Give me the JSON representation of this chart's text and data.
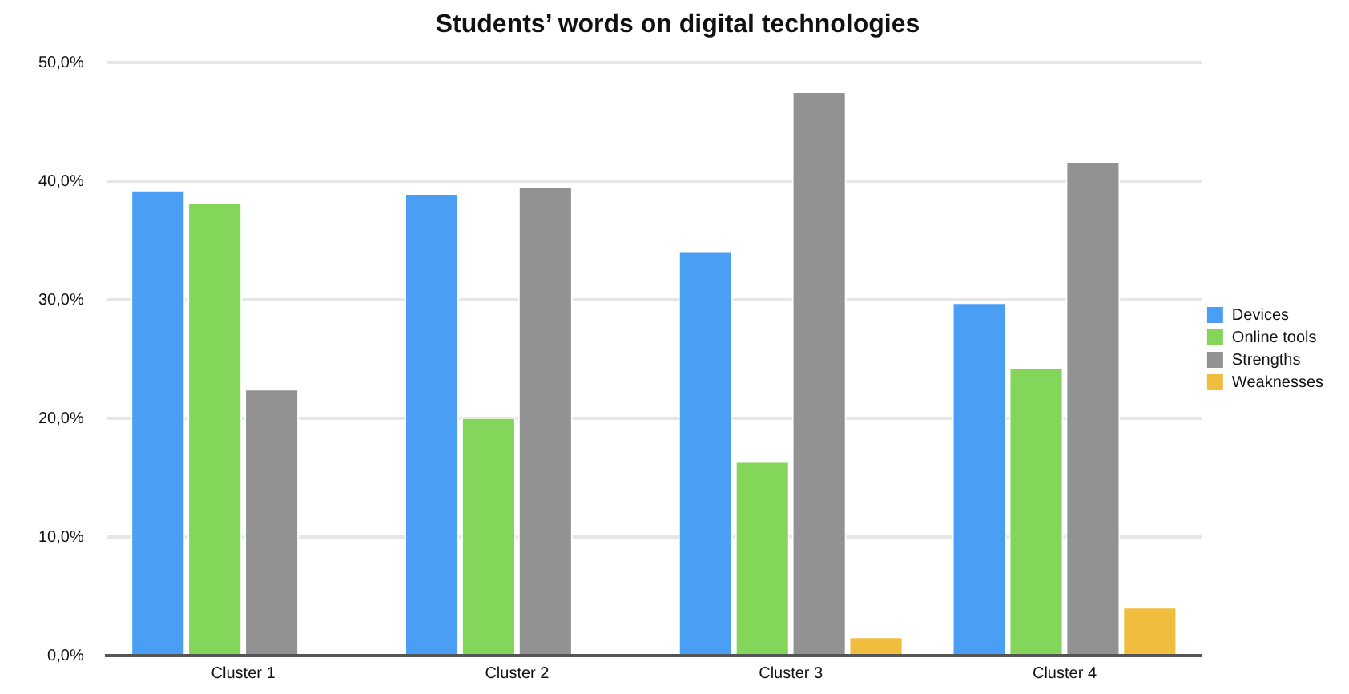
{
  "chart_data": {
    "type": "bar",
    "title": "Students’ words on digital technologies",
    "categories": [
      "Cluster 1",
      "Cluster 2",
      "Cluster 3",
      "Cluster 4"
    ],
    "series": [
      {
        "name": "Devices",
        "color": "#4a9ff5",
        "values": [
          39.3,
          39.0,
          34.1,
          29.8
        ]
      },
      {
        "name": "Online tools",
        "color": "#84d65a",
        "values": [
          38.2,
          20.1,
          16.4,
          24.3
        ]
      },
      {
        "name": "Strengths",
        "color": "#929292",
        "values": [
          22.5,
          39.6,
          47.6,
          41.7
        ]
      },
      {
        "name": "Weaknesses",
        "color": "#f0bd3e",
        "values": [
          null,
          null,
          1.6,
          4.1
        ]
      }
    ],
    "ylim": [
      0,
      50
    ],
    "yticks": [
      {
        "value": 0,
        "label": "0,0%"
      },
      {
        "value": 10,
        "label": "10,0%"
      },
      {
        "value": 20,
        "label": "20,0%"
      },
      {
        "value": 30,
        "label": "30,0%"
      },
      {
        "value": 40,
        "label": "40,0%"
      },
      {
        "value": 50,
        "label": "50,0%"
      }
    ],
    "grid": "y",
    "legend": "right"
  }
}
